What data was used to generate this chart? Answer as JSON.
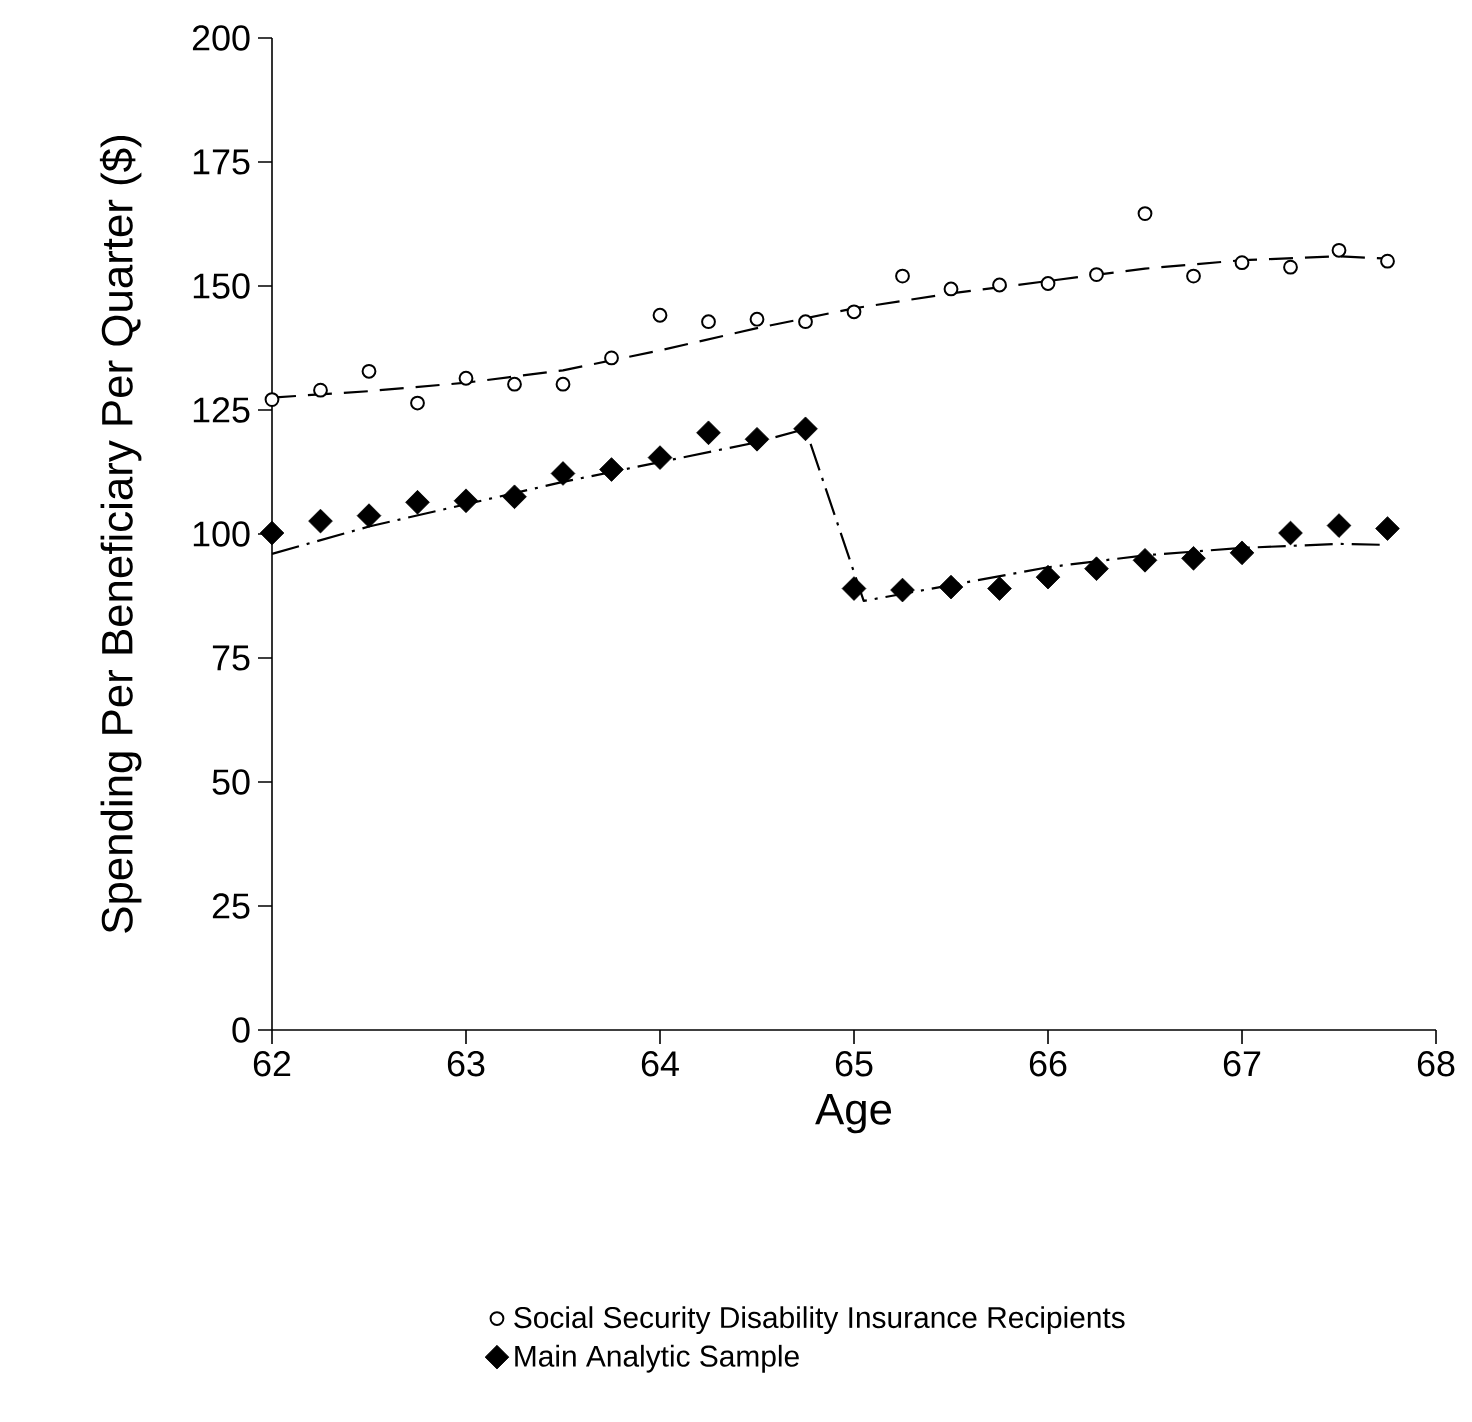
{
  "chart_data": {
    "type": "scatter",
    "xlabel": "Age",
    "ylabel": "Spending Per Beneficiary Per Quarter ($)",
    "xlim": [
      62,
      68
    ],
    "xticks": [
      62,
      63,
      64,
      65,
      66,
      67,
      68
    ],
    "ylim": [
      0,
      200
    ],
    "yticks": [
      0,
      25,
      50,
      75,
      100,
      125,
      150,
      175,
      200
    ],
    "grid": false,
    "legend": "bottom",
    "series": [
      {
        "name": "Social Security Disability Insurance Recipients",
        "marker": "circle",
        "color": "#000000",
        "x": [
          62,
          62.25,
          62.5,
          62.75,
          63,
          63.25,
          63.5,
          63.75,
          64,
          64.25,
          64.5,
          64.75,
          65,
          65.25,
          65.5,
          65.75,
          66,
          66.25,
          66.5,
          66.75,
          67,
          67.25,
          67.5,
          67.75
        ],
        "values": [
          127.1,
          129.0,
          132.8,
          126.4,
          131.4,
          130.2,
          130.2,
          135.5,
          144.1,
          142.8,
          143.3,
          142.8,
          144.8,
          152.0,
          149.4,
          150.2,
          150.5,
          152.3,
          164.6,
          152.0,
          154.7,
          153.8,
          157.2,
          155.0
        ]
      },
      {
        "name": "Main Analytic Sample",
        "marker": "diamond",
        "color": "#000000",
        "x": [
          62,
          62.25,
          62.5,
          62.75,
          63,
          63.25,
          63.5,
          63.75,
          64,
          64.25,
          64.5,
          64.75,
          65,
          65.25,
          65.5,
          65.75,
          66,
          66.25,
          66.5,
          66.75,
          67,
          67.25,
          67.5,
          67.75
        ],
        "values": [
          100.2,
          102.6,
          103.7,
          106.4,
          106.7,
          107.5,
          112.2,
          113.0,
          115.4,
          120.4,
          119.1,
          121.2,
          89.0,
          88.7,
          89.3,
          89.0,
          91.3,
          93.0,
          94.7,
          95.1,
          96.2,
          100.2,
          101.7,
          101.1
        ]
      },
      {
        "type": "line",
        "line_style": "dashed",
        "marker": "none",
        "color": "#000000",
        "x": [
          62,
          62.5,
          63,
          63.5,
          64,
          64.5,
          65,
          65.5,
          66,
          66.5,
          67,
          67.5,
          67.75
        ],
        "values": [
          127.5,
          128.8,
          130.5,
          133,
          137,
          141.5,
          145.5,
          148.5,
          151,
          153.5,
          155.2,
          156,
          155.5
        ]
      },
      {
        "type": "line",
        "line_style": "dashdot",
        "marker": "none",
        "color": "#000000",
        "x": [
          62,
          62.5,
          63,
          63.5,
          64,
          64.5,
          64.75,
          65.05,
          65.5,
          66,
          66.5,
          67,
          67.5,
          67.75
        ],
        "values": [
          96,
          101.5,
          106,
          110.5,
          114.5,
          118.5,
          121.2,
          86.5,
          89.7,
          93.3,
          95.7,
          97.2,
          98,
          97.8
        ]
      }
    ]
  }
}
